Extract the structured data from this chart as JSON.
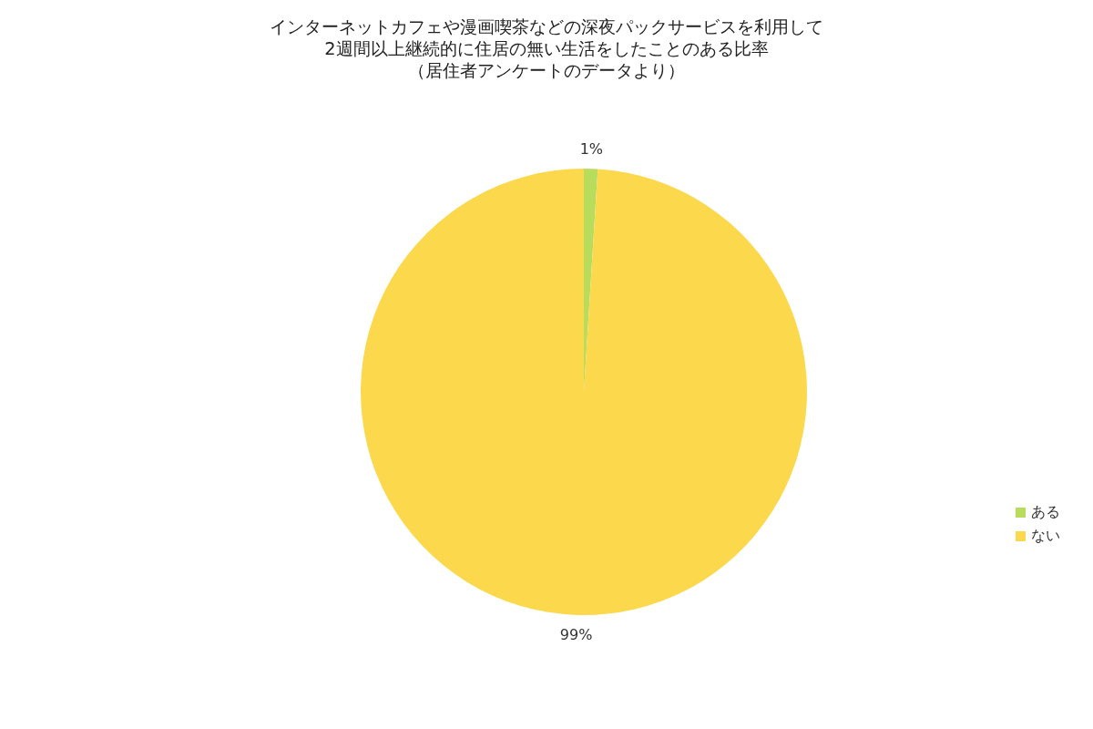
{
  "chart_data": {
    "type": "pie",
    "title": "インターネットカフェや漫画喫茶などの深夜パックサービスを利用して2週間以上継続的に住居の無い生活をしたことのある比率",
    "subtitle": "（居住者アンケートのデータより）",
    "categories": [
      "ある",
      "ない"
    ],
    "values": [
      1,
      99
    ],
    "colors": [
      "#b8dc5c",
      "#fcd84c"
    ],
    "value_labels": [
      "1%",
      "99%"
    ],
    "legend": "right"
  }
}
